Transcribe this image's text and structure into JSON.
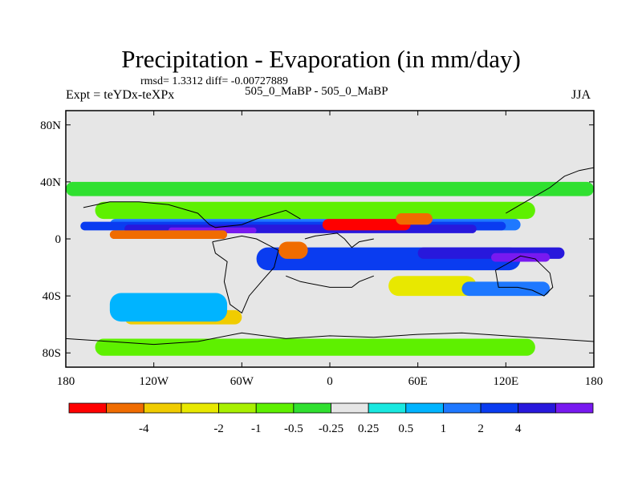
{
  "title": "Precipitation - Evaporation (in mm/day)",
  "stats": "rmsd= 1.3312 diff= -0.00727889",
  "experiment": "Expt = teYDx-teXPx",
  "subtitle": "505_0_MaBP - 505_0_MaBP",
  "season": "JJA",
  "chart_data": {
    "type": "heatmap",
    "projection": "cylindrical-equidistant",
    "x_range": [
      -180,
      180
    ],
    "y_range": [
      -90,
      90
    ],
    "x_ticks": [
      {
        "value": -180,
        "label": "180"
      },
      {
        "value": -120,
        "label": "120W"
      },
      {
        "value": -60,
        "label": "60W"
      },
      {
        "value": 0,
        "label": "0"
      },
      {
        "value": 60,
        "label": "60E"
      },
      {
        "value": 120,
        "label": "120E"
      },
      {
        "value": 180,
        "label": "180"
      }
    ],
    "y_ticks": [
      {
        "value": 80,
        "label": "80N"
      },
      {
        "value": 40,
        "label": "40N"
      },
      {
        "value": 0,
        "label": "0"
      },
      {
        "value": -40,
        "label": "40S"
      },
      {
        "value": -80,
        "label": "80S"
      }
    ],
    "colorbar": {
      "colors": [
        "#ff0000",
        "#f06c00",
        "#f0cc00",
        "#e8e800",
        "#a8f000",
        "#5ef000",
        "#30e030",
        "#e6e6e6",
        "#19e8e0",
        "#00b4ff",
        "#1e78ff",
        "#0a3cf0",
        "#2818dc",
        "#7819f0"
      ],
      "labels": [
        "-4",
        "-2",
        "-1",
        "-0.5",
        "-0.25",
        "0.25",
        "0.5",
        "1",
        "2",
        "4"
      ]
    },
    "regions": [
      {
        "level": 6,
        "lon": -180,
        "lat": 40,
        "w": 360,
        "h": 10
      },
      {
        "level": 5,
        "lon": -160,
        "lat": 26,
        "w": 300,
        "h": 12
      },
      {
        "level": 10,
        "lon": -150,
        "lat": 14,
        "w": 280,
        "h": 8
      },
      {
        "level": 11,
        "lon": -170,
        "lat": 12,
        "w": 290,
        "h": 6
      },
      {
        "level": 12,
        "lon": -140,
        "lat": 10,
        "w": 240,
        "h": 6
      },
      {
        "level": 13,
        "lon": -110,
        "lat": 8,
        "w": 60,
        "h": 4
      },
      {
        "level": 1,
        "lon": -150,
        "lat": 6,
        "w": 80,
        "h": 6
      },
      {
        "level": 0,
        "lon": -5,
        "lat": 14,
        "w": 60,
        "h": 8
      },
      {
        "level": 1,
        "lon": 45,
        "lat": 18,
        "w": 25,
        "h": 8
      },
      {
        "level": 11,
        "lon": -50,
        "lat": -6,
        "w": 180,
        "h": 16
      },
      {
        "level": 12,
        "lon": 60,
        "lat": -6,
        "w": 100,
        "h": 8
      },
      {
        "level": 13,
        "lon": 110,
        "lat": -10,
        "w": 40,
        "h": 6
      },
      {
        "level": 1,
        "lon": -35,
        "lat": -2,
        "w": 20,
        "h": 12
      },
      {
        "level": 3,
        "lon": 40,
        "lat": -26,
        "w": 60,
        "h": 14
      },
      {
        "level": 2,
        "lon": -140,
        "lat": -50,
        "w": 80,
        "h": 10
      },
      {
        "level": 5,
        "lon": -160,
        "lat": -70,
        "w": 300,
        "h": 12
      },
      {
        "level": 9,
        "lon": -150,
        "lat": -38,
        "w": 80,
        "h": 20
      },
      {
        "level": 10,
        "lon": 90,
        "lat": -30,
        "w": 60,
        "h": 10
      }
    ],
    "land_outlines": [
      {
        "name": "north-america",
        "points": [
          [
            -168,
            22
          ],
          [
            -150,
            26
          ],
          [
            -130,
            26
          ],
          [
            -110,
            24
          ],
          [
            -90,
            18
          ],
          [
            -82,
            10
          ],
          [
            -78,
            8
          ],
          [
            -60,
            10
          ],
          [
            -50,
            14
          ],
          [
            -30,
            20
          ],
          [
            -20,
            14
          ]
        ]
      },
      {
        "name": "south-america",
        "points": [
          [
            -80,
            -2
          ],
          [
            -78,
            -10
          ],
          [
            -70,
            -16
          ],
          [
            -72,
            -30
          ],
          [
            -68,
            -46
          ],
          [
            -60,
            -52
          ],
          [
            -55,
            -40
          ],
          [
            -45,
            -28
          ],
          [
            -38,
            -20
          ],
          [
            -35,
            -8
          ],
          [
            -50,
            0
          ],
          [
            -60,
            2
          ],
          [
            -70,
            0
          ],
          [
            -80,
            -2
          ]
        ]
      },
      {
        "name": "africa",
        "points": [
          [
            -17,
            0
          ],
          [
            -10,
            2
          ],
          [
            5,
            4
          ],
          [
            10,
            0
          ],
          [
            15,
            -6
          ],
          [
            20,
            -2
          ],
          [
            30,
            0
          ]
        ]
      },
      {
        "name": "australia",
        "points": [
          [
            113,
            -22
          ],
          [
            120,
            -18
          ],
          [
            130,
            -12
          ],
          [
            140,
            -14
          ],
          [
            150,
            -24
          ],
          [
            152,
            -34
          ],
          [
            146,
            -40
          ],
          [
            138,
            -36
          ],
          [
            128,
            -34
          ],
          [
            115,
            -34
          ],
          [
            113,
            -22
          ]
        ]
      },
      {
        "name": "antarctica",
        "points": [
          [
            -180,
            -70
          ],
          [
            -150,
            -72
          ],
          [
            -120,
            -74
          ],
          [
            -90,
            -72
          ],
          [
            -60,
            -66
          ],
          [
            -30,
            -70
          ],
          [
            0,
            -68
          ],
          [
            30,
            -69
          ],
          [
            60,
            -67
          ],
          [
            90,
            -66
          ],
          [
            120,
            -68
          ],
          [
            150,
            -70
          ],
          [
            180,
            -72
          ]
        ]
      },
      {
        "name": "southern-africa",
        "points": [
          [
            -30,
            -26
          ],
          [
            -20,
            -30
          ],
          [
            0,
            -34
          ],
          [
            15,
            -34
          ],
          [
            20,
            -30
          ],
          [
            30,
            -26
          ]
        ]
      },
      {
        "name": "east-asia",
        "points": [
          [
            120,
            18
          ],
          [
            130,
            24
          ],
          [
            140,
            30
          ],
          [
            150,
            36
          ],
          [
            160,
            44
          ],
          [
            170,
            48
          ],
          [
            180,
            50
          ]
        ]
      }
    ]
  }
}
